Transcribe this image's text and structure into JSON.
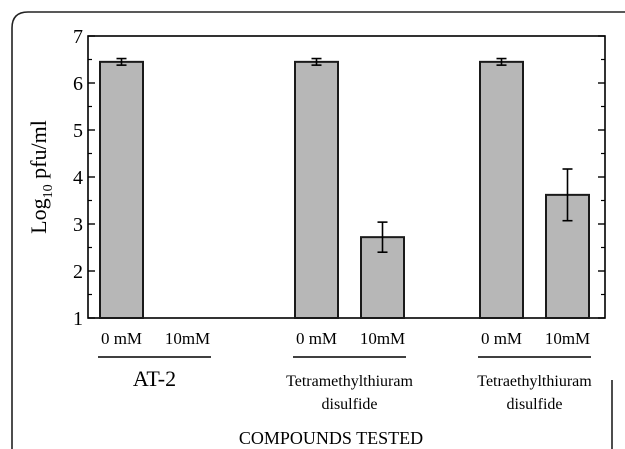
{
  "chart_data": {
    "type": "bar",
    "ylabel": {
      "main": "Log",
      "sub": "10",
      "rest": " pfu/ml"
    },
    "xlabel": "COMPOUNDS TESTED",
    "ylim": [
      1,
      7
    ],
    "yticks": [
      "1",
      "2",
      "3",
      "4",
      "5",
      "6",
      "7"
    ],
    "grid": false,
    "groups": [
      {
        "name_lines": [
          "AT-2"
        ],
        "bars": [
          {
            "label": "0 mM",
            "value": 6.45,
            "err": 0.07
          },
          {
            "label": "10mM",
            "value": null,
            "err": null
          }
        ]
      },
      {
        "name_lines": [
          "Tetramethylthiuram",
          "disulfide"
        ],
        "bars": [
          {
            "label": "0 mM",
            "value": 6.45,
            "err": 0.07
          },
          {
            "label": "10mM",
            "value": 2.72,
            "err": 0.32
          }
        ]
      },
      {
        "name_lines": [
          "Tetraethylthiuram",
          "disulfide"
        ],
        "bars": [
          {
            "label": "0 mM",
            "value": 6.45,
            "err": 0.07
          },
          {
            "label": "10mM",
            "value": 3.62,
            "err": 0.55
          }
        ]
      }
    ],
    "colors": {
      "bar_fill": "#b7b7b7",
      "bar_stroke": "#1a1a1a"
    }
  }
}
